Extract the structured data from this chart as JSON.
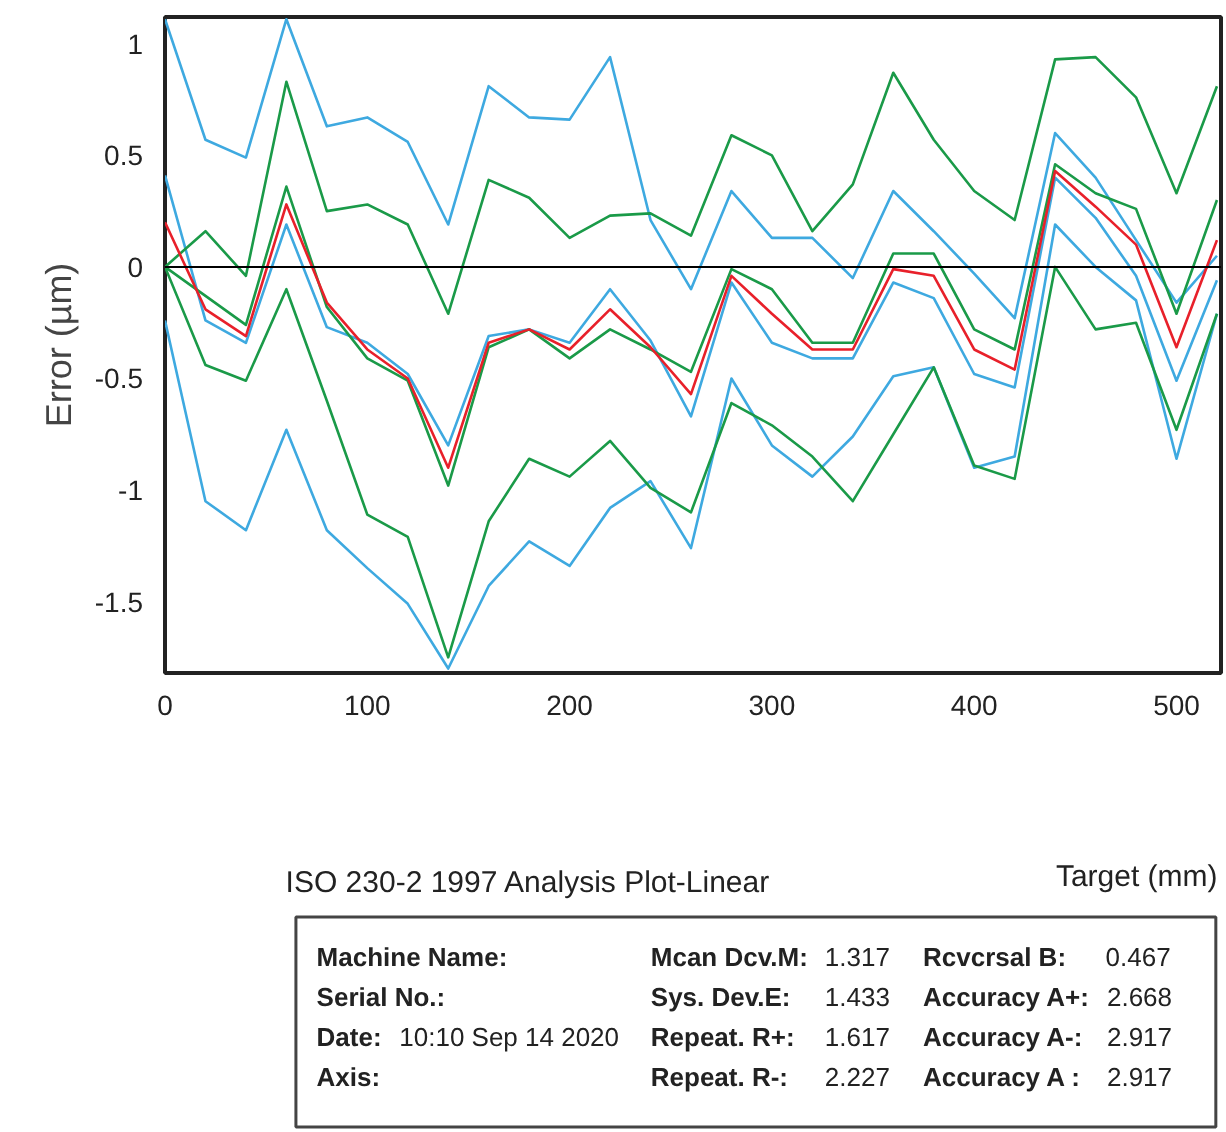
{
  "chart_data": {
    "type": "line",
    "title": "ISO 230-2 1997 Analysis Plot-Linear",
    "xlabel": "Target (mm)",
    "ylabel": "Error (µm)",
    "x": [
      0,
      20,
      40,
      60,
      80,
      100,
      120,
      140,
      160,
      180,
      200,
      220,
      240,
      260,
      280,
      300,
      320,
      340,
      360,
      380,
      400,
      420,
      440,
      460,
      480,
      500,
      520
    ],
    "series": [
      {
        "color": "#3ea9e0",
        "values": [
          1.11,
          0.57,
          0.49,
          1.11,
          0.63,
          0.67,
          0.56,
          0.19,
          0.81,
          0.67,
          0.66,
          0.94,
          0.21,
          -0.1,
          0.34,
          0.13,
          0.13,
          -0.05,
          0.34,
          0.16,
          -0.03,
          -0.23,
          0.6,
          0.4,
          0.12,
          -0.16,
          0.05
        ]
      },
      {
        "color": "#3ea9e0",
        "values": [
          0.41,
          -0.24,
          -0.34,
          0.19,
          -0.27,
          -0.34,
          -0.48,
          -0.8,
          -0.31,
          -0.28,
          -0.34,
          -0.1,
          -0.33,
          -0.67,
          -0.07,
          -0.34,
          -0.41,
          -0.41,
          -0.07,
          -0.14,
          -0.48,
          -0.54,
          0.4,
          0.22,
          -0.04,
          -0.51,
          -0.06
        ]
      },
      {
        "color": "#3ea9e0",
        "values": [
          -0.24,
          -1.05,
          -1.18,
          -0.73,
          -1.18,
          -1.35,
          -1.51,
          -1.8,
          -1.43,
          -1.23,
          -1.34,
          -1.08,
          -0.96,
          -1.26,
          -0.5,
          -0.8,
          -0.94,
          -0.76,
          -0.49,
          -0.45,
          -0.9,
          -0.85,
          0.19,
          0.0,
          -0.15,
          -0.86,
          -0.21
        ]
      },
      {
        "color": "#1a9a48",
        "values": [
          0.0,
          0.16,
          -0.04,
          0.83,
          0.25,
          0.28,
          0.19,
          -0.21,
          0.39,
          0.31,
          0.13,
          0.23,
          0.24,
          0.14,
          0.59,
          0.5,
          0.16,
          0.37,
          0.87,
          0.57,
          0.34,
          0.21,
          0.93,
          0.94,
          0.76,
          0.33,
          0.81
        ]
      },
      {
        "color": "#1a9a48",
        "values": [
          0.0,
          -0.13,
          -0.26,
          0.36,
          -0.18,
          -0.41,
          -0.51,
          -0.98,
          -0.36,
          -0.28,
          -0.41,
          -0.28,
          -0.37,
          -0.47,
          -0.01,
          -0.1,
          -0.34,
          -0.34,
          0.06,
          0.06,
          -0.28,
          -0.37,
          0.46,
          0.33,
          0.26,
          -0.21,
          0.3
        ]
      },
      {
        "color": "#1a9a48",
        "values": [
          0.0,
          -0.44,
          -0.51,
          -0.1,
          -0.6,
          -1.11,
          -1.21,
          -1.75,
          -1.14,
          -0.86,
          -0.94,
          -0.78,
          -0.99,
          -1.1,
          -0.61,
          -0.71,
          -0.85,
          -1.05,
          -0.75,
          -0.45,
          -0.89,
          -0.95,
          0.0,
          -0.28,
          -0.25,
          -0.73,
          -0.21
        ]
      },
      {
        "color": "#e8202a",
        "values": [
          0.2,
          -0.19,
          -0.31,
          0.28,
          -0.16,
          -0.37,
          -0.5,
          -0.9,
          -0.34,
          -0.28,
          -0.37,
          -0.19,
          -0.36,
          -0.57,
          -0.04,
          -0.21,
          -0.37,
          -0.37,
          -0.01,
          -0.04,
          -0.37,
          -0.46,
          0.43,
          0.27,
          0.1,
          -0.36,
          0.12
        ]
      }
    ],
    "xlim": [
      0,
      522
    ],
    "ylim": [
      -1.82,
      1.12
    ],
    "xticks": [
      0,
      100,
      200,
      300,
      400,
      500
    ],
    "yticks": [
      -1.5,
      -1,
      -0.5,
      0,
      0.5,
      1
    ],
    "ref_lines": [
      {
        "axis": "y",
        "value": 0,
        "color": "#000000"
      }
    ],
    "grid": false,
    "marker": "none",
    "line_style": "solid",
    "annotations": [
      "Machine Name:",
      "Mcan Dcv.M: 1.317",
      "Rcvcrsal B: 0.467",
      "Serial No.:",
      "Sys. Dev.E: 1.433",
      "Accuracy A+: 2.668",
      "Date: 10:10 Sep 14 2020",
      "Repeat. R+: 1.617",
      "Accuracy A-: 2.917",
      "Axis:",
      "Repeat. R-: 2.227",
      "Accuracy A : 2.917"
    ]
  }
}
